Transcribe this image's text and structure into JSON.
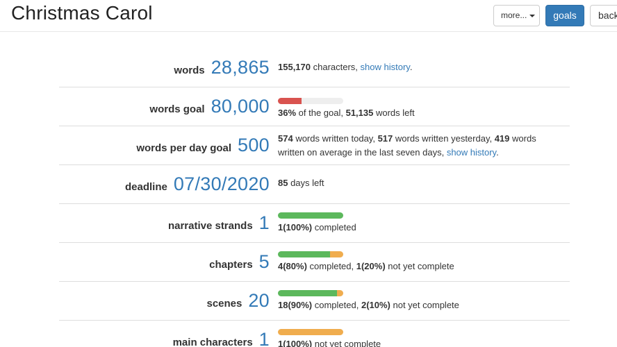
{
  "header": {
    "title": "Christmas Carol",
    "more_label": "more...",
    "goals_label": "goals",
    "back_label": "back"
  },
  "stats": {
    "words": {
      "label": "words",
      "value": "28,865",
      "characters": "155,170",
      "characters_text": " characters, ",
      "history_link": "show history",
      "period": "."
    },
    "words_goal": {
      "label": "words goal",
      "value": "80,000",
      "percent": "36%",
      "of_goal_text": " of the goal, ",
      "words_left": "51,135",
      "words_left_text": " words left",
      "progress": 0.36
    },
    "per_day": {
      "label": "words per day goal",
      "value": "500",
      "today": "574",
      "today_text": " words written today, ",
      "yesterday": "517",
      "yesterday_text": " words written yesterday, ",
      "average": "419",
      "average_text": " words written on average in the last seven days, ",
      "history_link": "show history",
      "period": "."
    },
    "deadline": {
      "label": "deadline",
      "value": "07/30/2020",
      "days": "85",
      "days_text": " days left"
    },
    "strands": {
      "label": "narrative strands",
      "value": "1",
      "completed": "1(100%)",
      "completed_text": " completed",
      "complete_fraction": 1.0,
      "incomplete_fraction": 0.0
    },
    "chapters": {
      "label": "chapters",
      "value": "5",
      "completed": "4(80%)",
      "completed_text": " completed, ",
      "incomplete": "1(20%)",
      "incomplete_text": " not yet complete",
      "complete_fraction": 0.8,
      "incomplete_fraction": 0.2
    },
    "scenes": {
      "label": "scenes",
      "value": "20",
      "completed": "18(90%)",
      "completed_text": " completed, ",
      "incomplete": "2(10%)",
      "incomplete_text": " not yet complete",
      "complete_fraction": 0.9,
      "incomplete_fraction": 0.1
    },
    "main_characters": {
      "label": "main characters",
      "value": "1",
      "incomplete": "1(100%)",
      "incomplete_text": " not yet complete",
      "complete_fraction": 0.0,
      "incomplete_fraction": 1.0
    }
  },
  "colors": {
    "accent": "#337ab7",
    "goal_bar": "#d9534f",
    "complete": "#5cb85c",
    "incomplete": "#f0ad4e"
  }
}
